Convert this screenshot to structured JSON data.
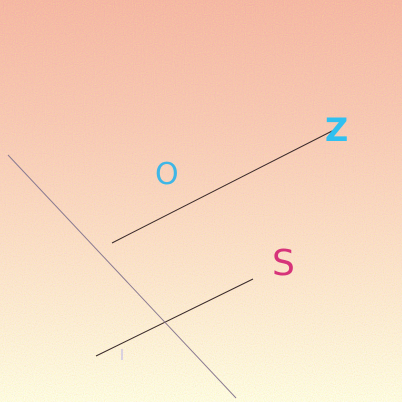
{
  "labels": {
    "o": "O",
    "z": "Z",
    "s": "S"
  },
  "colors": {
    "background_top": "#f4a7b0",
    "background_bottom": "#ffffff",
    "label_o": "#3fb6e6",
    "label_z": "#30c0f0",
    "label_s": "#d6337a",
    "line_dark": "#3a2a2a",
    "line_light": "#8a7a90"
  }
}
